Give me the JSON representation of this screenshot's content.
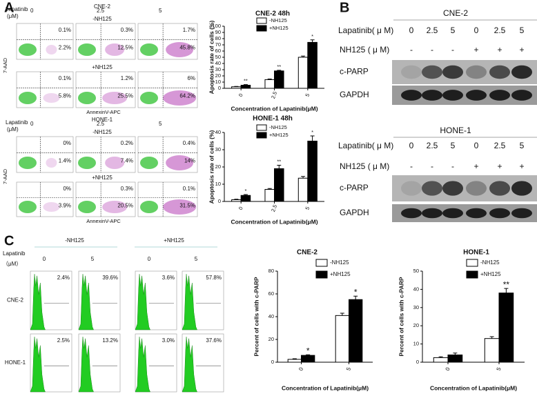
{
  "panel_labels": [
    "A",
    "B",
    "C"
  ],
  "flow_a": {
    "lapatinib_label": [
      "Lapatinib",
      "(μM)"
    ],
    "y_axis": "7-AAD",
    "x_axis": "AnnexinV-APC",
    "sections": [
      {
        "title": "CNE-2",
        "doses": [
          "0",
          "2.5",
          "5"
        ],
        "rows": [
          {
            "label": "-NH125",
            "upper": [
              "0.1%",
              "0.3%",
              "1.7%"
            ],
            "lower": [
              "2.2%",
              "12.5%",
              "45.8%"
            ]
          },
          {
            "label": "+NH125",
            "upper": [
              "0.1%",
              "1.2%",
              "6%"
            ],
            "lower": [
              "5.8%",
              "25.5%",
              "64.2%"
            ]
          }
        ]
      },
      {
        "title": "HONE-1",
        "doses": [
          "0",
          "2.5",
          "5"
        ],
        "rows": [
          {
            "label": "-NH125",
            "upper": [
              "0%",
              "0.2%",
              "0.4%"
            ],
            "lower": [
              "1.4%",
              "7.4%",
              "14%"
            ]
          },
          {
            "label": "+NH125",
            "upper": [
              "0%",
              "0.3%",
              "0.1%"
            ],
            "lower": [
              "3.9%",
              "20.5%",
              "31.5%"
            ]
          }
        ]
      }
    ]
  },
  "blots": [
    {
      "title": "CNE-2",
      "lapatinib_label": "Lapatinib( μ M)",
      "lapatinib": [
        "0",
        "2.5",
        "5",
        "0",
        "2.5",
        "5"
      ],
      "nh125_label": "NH125 ( μ M)",
      "nh125": [
        "-",
        "-",
        "-",
        "+",
        "+",
        "+"
      ],
      "bands": [
        "c-PARP",
        "GAPDH"
      ]
    },
    {
      "title": "HONE-1",
      "lapatinib_label": "Lapatinib( μ M)",
      "lapatinib": [
        "0",
        "2.5",
        "5",
        "0",
        "2.5",
        "5"
      ],
      "nh125_label": "NH125 ( μ M)",
      "nh125": [
        "-",
        "-",
        "-",
        "+",
        "+",
        "+"
      ],
      "bands": [
        "c-PARP",
        "GAPDH"
      ]
    }
  ],
  "flow_c": {
    "groups": [
      "-NH125",
      "+NH125"
    ],
    "lapatinib_label": [
      "Lapatinib",
      "（μM）"
    ],
    "doses": [
      "0",
      "5",
      "0",
      "5"
    ],
    "rows": [
      {
        "label": "CNE-2",
        "values": [
          "2.4%",
          "39.6%",
          "3.6%",
          "57.8%"
        ]
      },
      {
        "label": "HONE-1",
        "values": [
          "2.5%",
          "13.2%",
          "3.0%",
          "37.6%"
        ]
      }
    ]
  },
  "chart_data": [
    {
      "type": "bar",
      "title": "CNE-2 48h",
      "categories": [
        "0",
        "2.5",
        "5"
      ],
      "series": [
        {
          "name": "-NH125",
          "color": "#ffffff",
          "values": [
            2.5,
            14,
            50
          ],
          "errors": [
            0.5,
            1,
            2
          ]
        },
        {
          "name": "+NH125",
          "color": "#000000",
          "values": [
            5,
            28,
            74
          ],
          "errors": [
            1,
            1,
            4
          ],
          "annotations": [
            "**",
            "**",
            "*"
          ]
        }
      ],
      "ylabel": "Apoptosis rate of cells (%)",
      "xlabel": "Concentration of Lapatinib(μM)",
      "ylim": [
        0,
        100
      ],
      "yticks": [
        0,
        10,
        20,
        30,
        40,
        50,
        60,
        70,
        80,
        90,
        100
      ]
    },
    {
      "type": "bar",
      "title": "HONE-1 48h",
      "categories": [
        "0",
        "2.5",
        "5"
      ],
      "series": [
        {
          "name": "-NH125",
          "color": "#ffffff",
          "values": [
            1,
            7,
            13.5
          ],
          "errors": [
            0.3,
            0.5,
            1
          ]
        },
        {
          "name": "+NH125",
          "color": "#000000",
          "values": [
            3.5,
            19,
            35
          ],
          "errors": [
            0.5,
            2,
            3
          ],
          "annotations": [
            "*",
            "**",
            "*"
          ]
        }
      ],
      "ylabel": "Apoptosis rate of cells (%)",
      "xlabel": "Concentration of Lapatinib(μM)",
      "ylim": [
        0,
        40
      ],
      "yticks": [
        0,
        10,
        20,
        30,
        40
      ]
    },
    {
      "type": "bar",
      "title": "CNE-2",
      "categories": [
        "0",
        "5"
      ],
      "series": [
        {
          "name": "-NH125",
          "color": "#ffffff",
          "values": [
            2.5,
            41
          ],
          "errors": [
            0.5,
            2
          ]
        },
        {
          "name": "+NH125",
          "color": "#000000",
          "values": [
            6,
            55
          ],
          "errors": [
            0.5,
            3
          ],
          "annotations": [
            "*",
            "*"
          ]
        }
      ],
      "ylabel": "Percent of cells with c-PARP",
      "xlabel": "Concentration of Lapatinib(μM)",
      "ylim": [
        0,
        80
      ],
      "yticks": [
        0,
        20,
        40,
        60,
        80
      ]
    },
    {
      "type": "bar",
      "title": "HONE-1",
      "categories": [
        "0",
        "5"
      ],
      "series": [
        {
          "name": "-NH125",
          "color": "#ffffff",
          "values": [
            2.5,
            13
          ],
          "errors": [
            0.5,
            1
          ]
        },
        {
          "name": "+NH125",
          "color": "#000000",
          "values": [
            4,
            38
          ],
          "errors": [
            1,
            2.5
          ],
          "annotations": [
            null,
            "**"
          ]
        }
      ],
      "ylabel": "Percent of cells with c-PARP",
      "xlabel": "Concentration of Lapatinib(μM)",
      "ylim": [
        0,
        50
      ],
      "yticks": [
        0,
        10,
        20,
        30,
        40,
        50
      ]
    }
  ]
}
